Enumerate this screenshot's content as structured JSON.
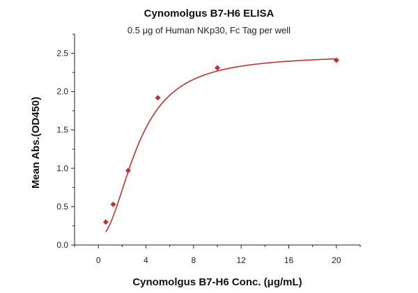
{
  "chart_data": {
    "type": "scatter",
    "title": "Cynomolgus B7-H6 ELISA",
    "subtitle": "0.5 μg of Human NKp30, Fc Tag per well",
    "xlabel": "Cynomolgus B7-H6 Conc. (μg/mL)",
    "ylabel": "Mean Abs.(OD450)",
    "xlim": [
      -2,
      22
    ],
    "ylim": [
      0,
      2.75
    ],
    "xticks": [
      0,
      4,
      8,
      12,
      16,
      20
    ],
    "yticks": [
      0.0,
      0.5,
      1.0,
      1.5,
      2.0,
      2.5
    ],
    "xtick_labels": [
      "0",
      "4",
      "8",
      "12",
      "16",
      "20"
    ],
    "ytick_labels": [
      "0.0",
      "0.5",
      "1.0",
      "1.5",
      "2.0",
      "2.5"
    ],
    "grid": false,
    "legend": "none",
    "series": [
      {
        "marker": "diamond",
        "color": "#c0322e",
        "x": [
          0.625,
          1.25,
          2.5,
          5,
          10,
          20
        ],
        "y": [
          0.3,
          0.53,
          0.97,
          1.92,
          2.31,
          2.41
        ]
      }
    ],
    "fit_curve": {
      "color": "#c0322e",
      "model": "4PL",
      "bottom": 0.1,
      "top": 2.48,
      "ec50": 3.3,
      "hill": 2.1
    }
  }
}
